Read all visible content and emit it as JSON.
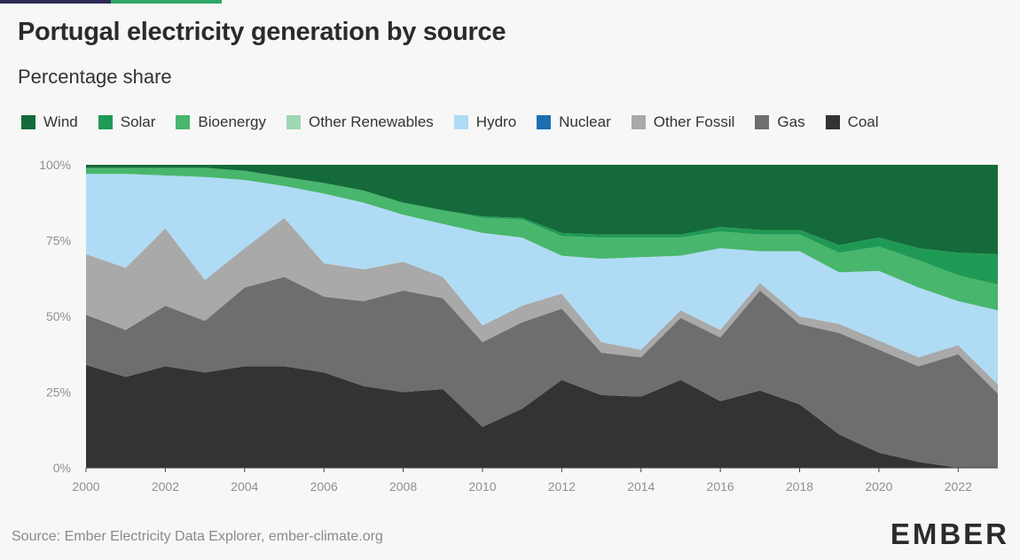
{
  "title": "Portugal electricity generation by source",
  "subtitle": "Percentage share",
  "source": "Source: Ember Electricity Data Explorer, ember-climate.org",
  "logo": "EMBER",
  "colors": {
    "accent_dark": "#2c2a55",
    "accent_green": "#2fa866",
    "background": "#f7f7f7"
  },
  "chart_data": {
    "type": "area",
    "stacked": true,
    "x": [
      2000,
      2001,
      2002,
      2003,
      2004,
      2005,
      2006,
      2007,
      2008,
      2009,
      2010,
      2011,
      2012,
      2013,
      2014,
      2015,
      2016,
      2017,
      2018,
      2019,
      2020,
      2021,
      2022,
      2023
    ],
    "xlim": [
      2000,
      2023
    ],
    "x_ticks": [
      "2000",
      "2002",
      "2004",
      "2006",
      "2008",
      "2010",
      "2012",
      "2014",
      "2016",
      "2018",
      "2020",
      "2022"
    ],
    "ylim": [
      0,
      100
    ],
    "y_ticks": [
      "0%",
      "25%",
      "50%",
      "75%",
      "100%"
    ],
    "y_tick_values": [
      0,
      25,
      50,
      75,
      100
    ],
    "legend_position": "top",
    "series": [
      {
        "name": "Coal",
        "color": "#333333",
        "values": [
          34,
          30,
          33.5,
          31.5,
          33.5,
          33.5,
          31.5,
          27,
          25,
          26,
          13.5,
          19.5,
          29,
          24,
          23.5,
          29,
          22,
          25.5,
          21,
          11,
          5,
          2,
          0,
          0
        ]
      },
      {
        "name": "Gas",
        "color": "#6e6e6e",
        "values": [
          16.5,
          15.5,
          20,
          17,
          26,
          29.5,
          25,
          28,
          33.5,
          30,
          28,
          28.5,
          23.5,
          14,
          13,
          20.5,
          21,
          33,
          26.5,
          33.5,
          34,
          31.5,
          37.5,
          24.5
        ]
      },
      {
        "name": "Other Fossil",
        "color": "#a9a9a9",
        "values": [
          20,
          20.5,
          25.5,
          13.5,
          13,
          19.5,
          11,
          10.5,
          9.5,
          7,
          5.5,
          5.5,
          5,
          3.5,
          2.5,
          2.5,
          2.5,
          2.5,
          2.5,
          3,
          3,
          3,
          3,
          3
        ]
      },
      {
        "name": "Nuclear",
        "color": "#1e6fb0",
        "values": [
          0,
          0,
          0,
          0,
          0,
          0,
          0,
          0,
          0,
          0,
          0,
          0,
          0,
          0,
          0,
          0,
          0,
          0,
          0,
          0,
          0,
          0,
          0,
          0
        ]
      },
      {
        "name": "Hydro",
        "color": "#b0dbf5",
        "values": [
          26.5,
          31,
          17.5,
          34,
          22.5,
          10.5,
          23,
          22,
          15.5,
          17.5,
          30.5,
          22.5,
          12.5,
          27.5,
          30.5,
          18,
          27,
          10.5,
          21.5,
          17,
          23,
          23,
          14.5,
          24.5
        ]
      },
      {
        "name": "Other Renewables",
        "color": "#9fd7b5",
        "values": [
          0,
          0,
          0,
          0,
          0,
          0,
          0,
          0,
          0,
          0,
          0,
          0,
          0,
          0,
          0,
          0,
          0,
          0,
          0,
          0,
          0,
          0,
          0,
          0
        ]
      },
      {
        "name": "Bioenergy",
        "color": "#48b66c",
        "values": [
          2,
          2,
          2.5,
          3,
          3,
          3,
          3.5,
          4,
          4,
          4.5,
          5,
          6,
          6.5,
          7,
          6.5,
          6,
          5.5,
          5.5,
          5.5,
          6.5,
          8,
          9,
          8.5,
          8.5
        ]
      },
      {
        "name": "Solar",
        "color": "#1f9a55",
        "values": [
          0,
          0,
          0,
          0,
          0,
          0,
          0,
          0,
          0,
          0,
          0.5,
          0.5,
          1,
          1,
          1,
          1,
          1.5,
          1.5,
          1.5,
          2.5,
          3,
          4,
          7.5,
          10
        ]
      },
      {
        "name": "Wind",
        "color": "#146a3a",
        "values": [
          1,
          1,
          1,
          1,
          2,
          4,
          6,
          8.5,
          12.5,
          15,
          17,
          17.5,
          22.5,
          23,
          23,
          23,
          20.5,
          21.5,
          21.5,
          26.5,
          24,
          27.5,
          29,
          29.5
        ]
      }
    ],
    "legend_order": [
      "Wind",
      "Solar",
      "Bioenergy",
      "Other Renewables",
      "Hydro",
      "Nuclear",
      "Other Fossil",
      "Gas",
      "Coal"
    ]
  }
}
